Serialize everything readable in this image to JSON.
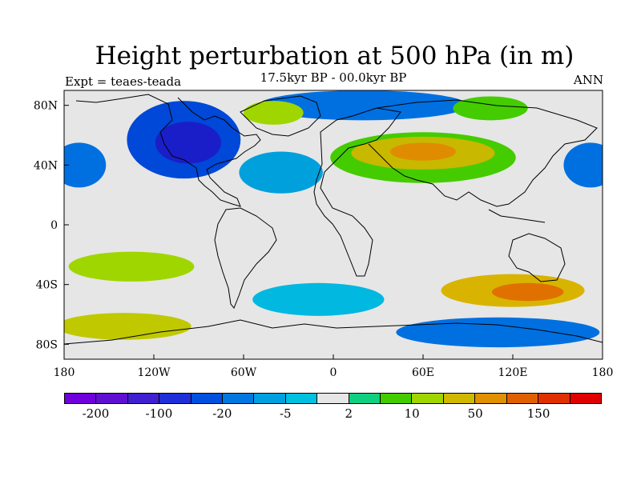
{
  "title": "Height perturbation at 500 hPa (in m)",
  "subtitle": "17.5kyr BP - 00.0kyr BP",
  "experiment_label": "Expt = teaes-teada",
  "season_label": "ANN",
  "map": {
    "projection": "cylindrical equidistant",
    "lon_range": [
      -180,
      180
    ],
    "lat_range": [
      -90,
      90
    ],
    "lat_ticks": [
      {
        "value": 80,
        "label": "80N"
      },
      {
        "value": 40,
        "label": "40N"
      },
      {
        "value": 0,
        "label": "0"
      },
      {
        "value": -40,
        "label": "40S"
      },
      {
        "value": -80,
        "label": "80S"
      }
    ],
    "lon_ticks": [
      {
        "value": -180,
        "label": "180"
      },
      {
        "value": -120,
        "label": "120W"
      },
      {
        "value": -60,
        "label": "60W"
      },
      {
        "value": 0,
        "label": "0"
      },
      {
        "value": 60,
        "label": "60E"
      },
      {
        "value": 120,
        "label": "120E"
      },
      {
        "value": 180,
        "label": "180"
      }
    ],
    "background_color": "#e6e6e6",
    "anomaly_regions": [
      {
        "name": "north-america-low",
        "lon": -100,
        "lat": 57,
        "rx": 38,
        "ry": 26,
        "color": "#0048d8"
      },
      {
        "name": "north-america-low-core",
        "lon": -97,
        "lat": 55,
        "rx": 22,
        "ry": 14,
        "color": "#1a1ec8"
      },
      {
        "name": "north-atlantic-low",
        "lon": -35,
        "lat": 35,
        "rx": 28,
        "ry": 14,
        "color": "#00a0dc"
      },
      {
        "name": "eurasia-high",
        "lon": 60,
        "lat": 45,
        "rx": 62,
        "ry": 17,
        "color": "#44cc00"
      },
      {
        "name": "eurasia-high-core",
        "lon": 60,
        "lat": 48,
        "rx": 48,
        "ry": 11,
        "color": "#c8b800"
      },
      {
        "name": "eurasia-high-peak",
        "lon": 60,
        "lat": 49,
        "rx": 22,
        "ry": 6,
        "color": "#e08c00"
      },
      {
        "name": "arctic-low",
        "lon": 20,
        "lat": 80,
        "rx": 70,
        "ry": 10,
        "color": "#0070e0"
      },
      {
        "name": "north-pacific-low",
        "lon": -170,
        "lat": 40,
        "rx": 18,
        "ry": 15,
        "color": "#0070e0"
      },
      {
        "name": "north-pacific-low-east",
        "lon": 172,
        "lat": 40,
        "rx": 18,
        "ry": 15,
        "color": "#0070e0"
      },
      {
        "name": "south-pacific-high",
        "lon": -135,
        "lat": -28,
        "rx": 42,
        "ry": 10,
        "color": "#a0d600"
      },
      {
        "name": "south-indian-high",
        "lon": 120,
        "lat": -44,
        "rx": 48,
        "ry": 11,
        "color": "#d8b400"
      },
      {
        "name": "south-indian-high-core",
        "lon": 130,
        "lat": -45,
        "rx": 24,
        "ry": 6,
        "color": "#e07000"
      },
      {
        "name": "south-atlantic-low",
        "lon": -10,
        "lat": -50,
        "rx": 44,
        "ry": 11,
        "color": "#00b8e0"
      },
      {
        "name": "southern-ocean-low",
        "lon": 110,
        "lat": -72,
        "rx": 68,
        "ry": 10,
        "color": "#0070e0"
      },
      {
        "name": "south-pacific-high-2",
        "lon": -140,
        "lat": -68,
        "rx": 45,
        "ry": 9,
        "color": "#c0c800"
      },
      {
        "name": "arctic-high-ne",
        "lon": 105,
        "lat": 78,
        "rx": 25,
        "ry": 8,
        "color": "#44cc00"
      },
      {
        "name": "greenland-high",
        "lon": -40,
        "lat": 75,
        "rx": 20,
        "ry": 8,
        "color": "#a0d600"
      }
    ]
  },
  "colorbar": {
    "colors": [
      "#7000dc",
      "#6010d0",
      "#4020d0",
      "#2030d8",
      "#0050e0",
      "#0078e0",
      "#00a0e0",
      "#00c0e0",
      "#e6e6e6",
      "#10d080",
      "#44cc00",
      "#a0d600",
      "#d0b800",
      "#e09000",
      "#e06000",
      "#e03000",
      "#e00000"
    ],
    "labels": [
      "-200",
      "-100",
      "-20",
      "-5",
      "2",
      "10",
      "50",
      "150"
    ]
  }
}
